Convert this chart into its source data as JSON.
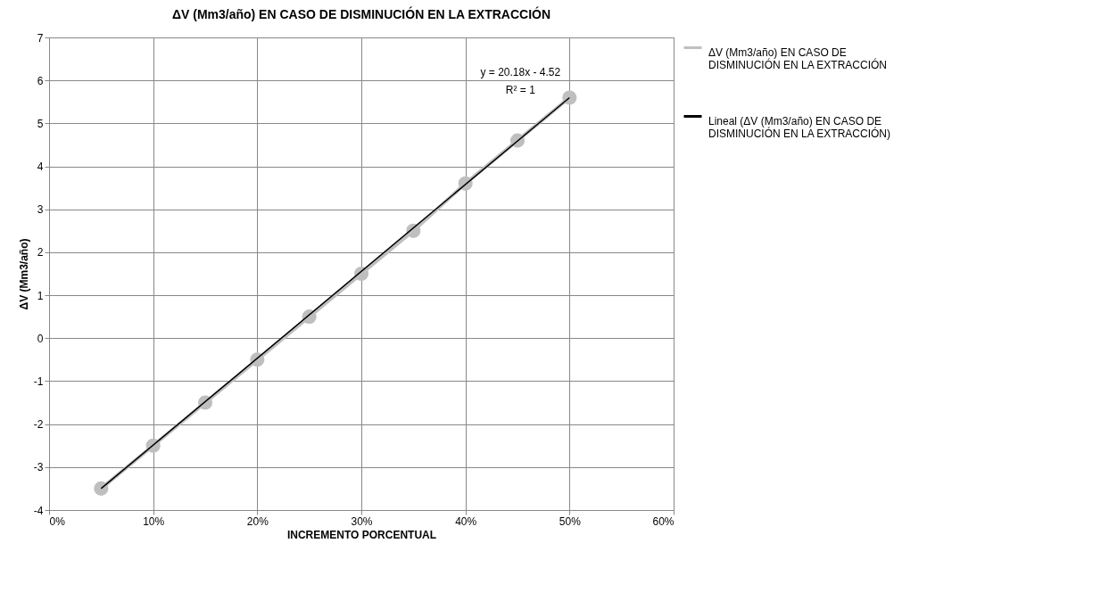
{
  "chart_data": {
    "type": "line",
    "title": "ΔV (Mm3/año) EN CASO DE DISMINUCIÓN EN LA EXTRACCIÓN",
    "xlabel": "INCREMENTO PORCENTUAL",
    "ylabel": "ΔV (Mm3/año)",
    "x": [
      5,
      10,
      15,
      20,
      25,
      30,
      35,
      40,
      45,
      50
    ],
    "series": [
      {
        "name": "ΔV (Mm3/año) EN CASO DE DISMINUCIÓN EN LA EXTRACCIÓN",
        "color": "#bfbfbf",
        "marker": "circle",
        "values": [
          -3.5,
          -2.5,
          -1.5,
          -0.5,
          0.5,
          1.5,
          2.5,
          3.6,
          4.6,
          5.6
        ]
      },
      {
        "name": "Lineal (ΔV (Mm3/año) EN CASO DE DISMINUCIÓN EN LA EXTRACCIÓN)",
        "color": "#000000",
        "type": "line",
        "marker": "none",
        "x": [
          5,
          50
        ],
        "values": [
          -3.5,
          5.6
        ]
      }
    ],
    "annotations": [
      "y = 20.18x - 4.52",
      "R² = 1"
    ],
    "xlim": [
      0,
      60
    ],
    "xticks": [
      {
        "value": 0,
        "label": "0%"
      },
      {
        "value": 10,
        "label": "10%"
      },
      {
        "value": 20,
        "label": "20%"
      },
      {
        "value": 30,
        "label": "30%"
      },
      {
        "value": 40,
        "label": "40%"
      },
      {
        "value": 50,
        "label": "50%"
      },
      {
        "value": 60,
        "label": "60%"
      }
    ],
    "ylim": [
      -4,
      7
    ],
    "yticks": [
      -4,
      -3,
      -2,
      -1,
      0,
      1,
      2,
      3,
      4,
      5,
      6,
      7
    ],
    "grid": true,
    "legend": "right"
  }
}
